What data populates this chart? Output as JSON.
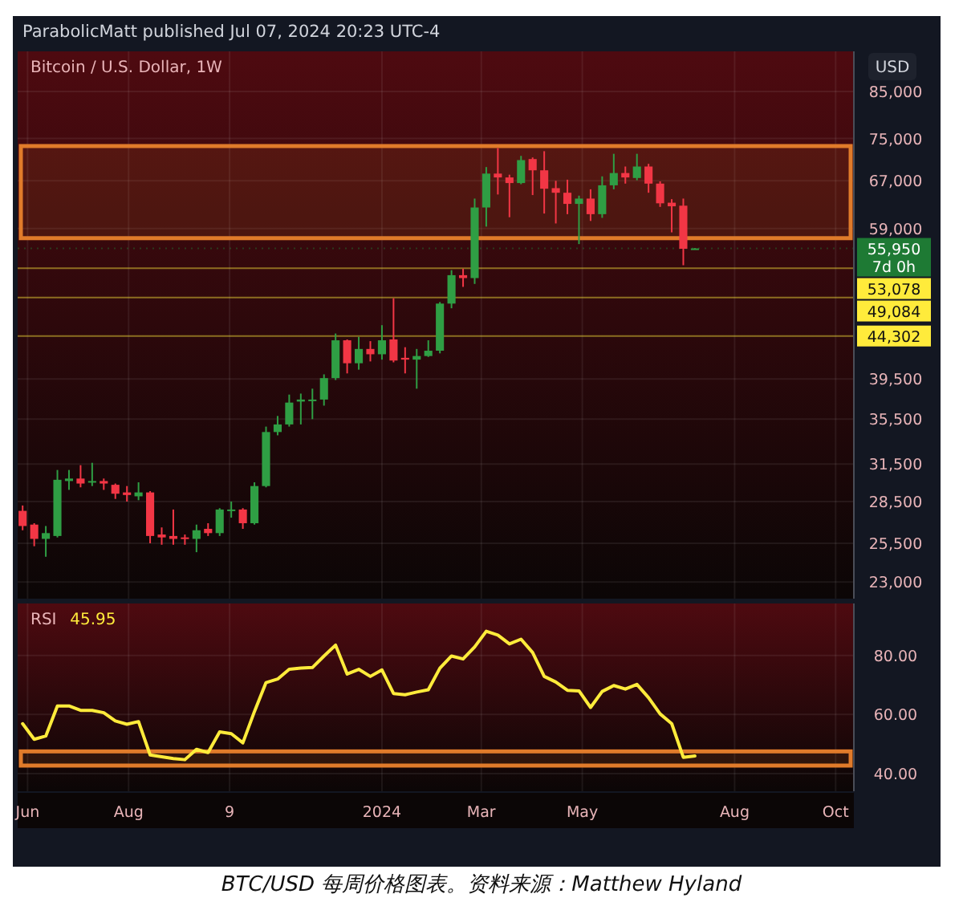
{
  "chart_data": [
    {
      "type": "candlestick",
      "title": "Bitcoin / U.S. Dollar, 1W",
      "ylabel": "USD",
      "log": true,
      "grid": true,
      "tick_labels": "y",
      "annotations": [
        "ParabolicMatt published Jul 07, 2024 20:23 UTC-4",
        "BTC/USD 每周价格图表。资料来源：Matthew Hyland"
      ],
      "xlim": [
        "2023-05-26",
        "2024-10-12"
      ],
      "xticks": [
        "2023-06-01",
        "2023-08-01",
        "2023-10-01",
        "2024-01-01",
        "2024-03-01",
        "2024-05-01",
        "2024-08-01",
        "2024-10-01"
      ],
      "ylim": [
        22000,
        94600
      ],
      "yticks": [
        {
          "value": 23000,
          "label": "23,000"
        },
        {
          "value": 25500,
          "label": "25,500"
        },
        {
          "value": 28500,
          "label": "28,500"
        },
        {
          "value": 31500,
          "label": "31,500"
        },
        {
          "value": 35500,
          "label": "35,500"
        },
        {
          "value": 39500,
          "label": "39,500"
        },
        {
          "value": 59000,
          "label": "59,000"
        },
        {
          "value": 67000,
          "label": "67,000"
        },
        {
          "value": 75000,
          "label": "75,000"
        },
        {
          "value": 85000,
          "label": "85,000"
        }
      ],
      "ref_lines": [
        {
          "axis": "y",
          "value": 55950,
          "label": "55,950\n7d 0h",
          "color": "#1e7a34",
          "line_style": "dotted"
        },
        {
          "axis": "y",
          "value": 53078,
          "label": "53,078",
          "color": "#ffeb3b"
        },
        {
          "axis": "y",
          "value": 49084,
          "label": "49,084",
          "color": "#ffeb3b"
        },
        {
          "axis": "y",
          "value": 44302,
          "label": "44,302",
          "color": "#ffeb3b"
        }
      ],
      "bands": [
        {
          "axis": "y",
          "from": 57500,
          "to": 73500,
          "color": "#e07b2a"
        }
      ],
      "x": [
        "2023-05-29",
        "2023-06-05",
        "2023-06-12",
        "2023-06-19",
        "2023-06-26",
        "2023-07-03",
        "2023-07-10",
        "2023-07-17",
        "2023-07-24",
        "2023-07-31",
        "2023-08-07",
        "2023-08-14",
        "2023-08-21",
        "2023-08-28",
        "2023-09-04",
        "2023-09-11",
        "2023-09-18",
        "2023-09-25",
        "2023-10-02",
        "2023-10-09",
        "2023-10-16",
        "2023-10-23",
        "2023-10-30",
        "2023-11-06",
        "2023-11-13",
        "2023-11-20",
        "2023-11-27",
        "2023-12-04",
        "2023-12-11",
        "2023-12-18",
        "2023-12-25",
        "2024-01-01",
        "2024-01-08",
        "2024-01-15",
        "2024-01-22",
        "2024-01-29",
        "2024-02-05",
        "2024-02-12",
        "2024-02-19",
        "2024-02-26",
        "2024-03-04",
        "2024-03-11",
        "2024-03-18",
        "2024-03-25",
        "2024-04-01",
        "2024-04-08",
        "2024-04-15",
        "2024-04-22",
        "2024-04-29",
        "2024-05-06",
        "2024-05-13",
        "2024-05-20",
        "2024-05-27",
        "2024-06-03",
        "2024-06-10",
        "2024-06-17",
        "2024-06-24",
        "2024-07-01",
        "2024-07-08"
      ],
      "ohlc": [
        [
          27800,
          28200,
          26400,
          26700
        ],
        [
          26800,
          26900,
          25300,
          25800
        ],
        [
          25800,
          26700,
          24600,
          26200
        ],
        [
          26000,
          31000,
          25900,
          30200
        ],
        [
          30100,
          31000,
          29400,
          30300
        ],
        [
          30300,
          31400,
          29600,
          29900
        ],
        [
          30000,
          31600,
          29700,
          30100
        ],
        [
          30100,
          30300,
          29400,
          29900
        ],
        [
          29800,
          29900,
          28700,
          29100
        ],
        [
          29200,
          29700,
          28500,
          29000
        ],
        [
          28900,
          30000,
          28600,
          29200
        ],
        [
          29200,
          29300,
          25500,
          26000
        ],
        [
          26100,
          26600,
          25400,
          25900
        ],
        [
          26000,
          27900,
          25400,
          25800
        ],
        [
          25900,
          26100,
          25400,
          25800
        ],
        [
          25800,
          26800,
          24900,
          26400
        ],
        [
          26500,
          26900,
          26000,
          26200
        ],
        [
          26200,
          28000,
          26000,
          27900
        ],
        [
          27800,
          28500,
          27300,
          27900
        ],
        [
          27900,
          28000,
          26500,
          26900
        ],
        [
          26900,
          30000,
          26800,
          29700
        ],
        [
          29700,
          34800,
          29600,
          34300
        ],
        [
          34300,
          35800,
          34000,
          35000
        ],
        [
          35000,
          37900,
          34800,
          37100
        ],
        [
          37200,
          38000,
          35000,
          37400
        ],
        [
          37300,
          38500,
          35500,
          37400
        ],
        [
          37400,
          40000,
          36800,
          39600
        ],
        [
          39600,
          44600,
          39400,
          43800
        ],
        [
          43800,
          43900,
          40100,
          41200
        ],
        [
          41200,
          44200,
          40500,
          42800
        ],
        [
          42800,
          43700,
          41400,
          42200
        ],
        [
          42200,
          45600,
          41600,
          43800
        ],
        [
          43900,
          49000,
          41300,
          41500
        ],
        [
          41800,
          43000,
          40100,
          41600
        ],
        [
          41600,
          42800,
          38500,
          42000
        ],
        [
          42000,
          43800,
          41900,
          42600
        ],
        [
          42600,
          48500,
          42300,
          48300
        ],
        [
          48300,
          52800,
          47700,
          52100
        ],
        [
          52100,
          53000,
          50500,
          51700
        ],
        [
          51700,
          63900,
          50900,
          62400
        ],
        [
          62400,
          69500,
          59300,
          68300
        ],
        [
          68300,
          73100,
          64600,
          67600
        ],
        [
          67600,
          68100,
          60800,
          66600
        ],
        [
          66600,
          71600,
          66400,
          70800
        ],
        [
          71000,
          71300,
          64500,
          68900
        ],
        [
          68900,
          72500,
          61400,
          65600
        ],
        [
          65700,
          67000,
          59800,
          64900
        ],
        [
          64900,
          67200,
          61300,
          63000
        ],
        [
          63000,
          64400,
          56600,
          63900
        ],
        [
          63900,
          65500,
          60200,
          61300
        ],
        [
          61300,
          67800,
          60700,
          66200
        ],
        [
          66200,
          72000,
          65500,
          68400
        ],
        [
          68400,
          69600,
          66500,
          67600
        ],
        [
          67500,
          72000,
          67100,
          69600
        ],
        [
          69600,
          70100,
          64900,
          66500
        ],
        [
          66500,
          66900,
          62500,
          63100
        ],
        [
          63200,
          63800,
          58400,
          62600
        ],
        [
          62700,
          63900,
          53500,
          55900
        ],
        [
          55860,
          56000,
          55800,
          55950
        ]
      ]
    },
    {
      "type": "line",
      "title": "RSI",
      "grid": true,
      "annotations": [
        "45.95"
      ],
      "xlim": [
        "2023-05-26",
        "2024-10-12"
      ],
      "xticks": [
        {
          "value": "2023-06-01",
          "label": "Jun"
        },
        {
          "value": "2023-08-01",
          "label": "Aug"
        },
        {
          "value": "2023-10-01",
          "label": "9"
        },
        {
          "value": "2024-01-01",
          "label": "2024"
        },
        {
          "value": "2024-03-01",
          "label": "Mar"
        },
        {
          "value": "2024-05-01",
          "label": "May"
        },
        {
          "value": "2024-08-01",
          "label": "Aug"
        },
        {
          "value": "2024-10-01",
          "label": "Oct"
        }
      ],
      "ylim": [
        34,
        97.6
      ],
      "yticks": [
        {
          "value": 40,
          "label": "40.00"
        },
        {
          "value": 60,
          "label": "60.00"
        },
        {
          "value": 80,
          "label": "80.00"
        }
      ],
      "bands": [
        {
          "axis": "y",
          "from": 42.7,
          "to": 47.5,
          "color": "#e07b2a"
        }
      ],
      "x": [
        "2023-05-29",
        "2023-06-05",
        "2023-06-12",
        "2023-06-19",
        "2023-06-26",
        "2023-07-03",
        "2023-07-10",
        "2023-07-17",
        "2023-07-24",
        "2023-07-31",
        "2023-08-07",
        "2023-08-14",
        "2023-08-21",
        "2023-08-28",
        "2023-09-04",
        "2023-09-11",
        "2023-09-18",
        "2023-09-25",
        "2023-10-02",
        "2023-10-09",
        "2023-10-16",
        "2023-10-23",
        "2023-10-30",
        "2023-11-06",
        "2023-11-13",
        "2023-11-20",
        "2023-11-27",
        "2023-12-04",
        "2023-12-11",
        "2023-12-18",
        "2023-12-25",
        "2024-01-01",
        "2024-01-08",
        "2024-01-15",
        "2024-01-22",
        "2024-01-29",
        "2024-02-05",
        "2024-02-12",
        "2024-02-19",
        "2024-02-26",
        "2024-03-04",
        "2024-03-11",
        "2024-03-18",
        "2024-03-25",
        "2024-04-01",
        "2024-04-08",
        "2024-04-15",
        "2024-04-22",
        "2024-04-29",
        "2024-05-06",
        "2024-05-13",
        "2024-05-20",
        "2024-05-27",
        "2024-06-03",
        "2024-06-10",
        "2024-06-17",
        "2024-06-24",
        "2024-07-01",
        "2024-07-08"
      ],
      "series": [
        {
          "color": "#ffeb3b",
          "values": [
            56.9,
            51.6,
            52.7,
            62.9,
            62.9,
            61.4,
            61.4,
            60.6,
            57.8,
            56.7,
            57.6,
            46.3,
            45.7,
            45.1,
            44.7,
            48.2,
            47.1,
            54.1,
            53.5,
            50.4,
            61.0,
            70.8,
            72.0,
            75.3,
            75.7,
            75.9,
            79.8,
            83.5,
            73.7,
            75.3,
            72.9,
            75.1,
            67.1,
            66.7,
            67.6,
            68.4,
            75.7,
            79.8,
            78.8,
            82.9,
            88.2,
            86.9,
            83.9,
            85.5,
            81.0,
            72.9,
            71.0,
            68.2,
            68.0,
            62.4,
            67.8,
            69.8,
            68.6,
            70.2,
            65.7,
            60.2,
            56.9,
            45.5,
            45.95
          ]
        }
      ]
    }
  ]
}
